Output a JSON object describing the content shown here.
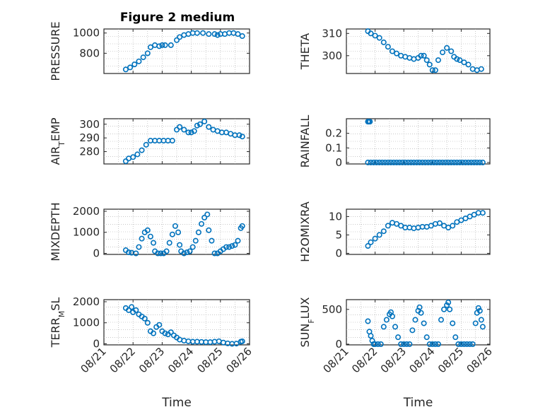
{
  "figure_title": "Figure 2 medium",
  "x_axis_label": "Time",
  "x_tick_labels": [
    "08/21",
    "08/22",
    "08/23",
    "08/24",
    "08/25",
    "08/26"
  ],
  "marker_color": "#0072BD",
  "chart_data": [
    {
      "id": "pressure",
      "type": "scatter",
      "title": "Figure 2 medium",
      "ylabel_parts": [
        "PRESSURE"
      ],
      "xlabel": "",
      "xlim": [
        0,
        5
      ],
      "ylim": [
        600,
        1040
      ],
      "grid": true,
      "yticks": [
        800,
        1000
      ],
      "ytick_labels": [
        "800",
        "1000"
      ],
      "x": [
        0.75,
        0.9,
        1.05,
        1.2,
        1.35,
        1.5,
        1.6,
        1.75,
        1.9,
        2.0,
        2.1,
        2.3,
        2.5,
        2.6,
        2.75,
        2.9,
        3.05,
        3.2,
        3.4,
        3.6,
        3.8,
        3.9,
        4.0,
        4.15,
        4.3,
        4.45,
        4.6,
        4.75
      ],
      "y": [
        640,
        660,
        690,
        720,
        760,
        800,
        860,
        880,
        870,
        880,
        880,
        880,
        930,
        960,
        980,
        990,
        1000,
        1000,
        1000,
        990,
        990,
        980,
        990,
        990,
        1000,
        1000,
        990,
        970
      ]
    },
    {
      "id": "theta",
      "type": "scatter",
      "ylabel_parts": [
        "THETA"
      ],
      "xlabel": "",
      "xlim": [
        0,
        5
      ],
      "ylim": [
        292,
        312
      ],
      "grid": true,
      "yticks": [
        300,
        310
      ],
      "ytick_labels": [
        "300",
        "310"
      ],
      "x": [
        0.75,
        0.85,
        1.0,
        1.15,
        1.3,
        1.45,
        1.6,
        1.75,
        1.9,
        2.05,
        2.2,
        2.35,
        2.5,
        2.6,
        2.7,
        2.8,
        2.9,
        3.0,
        3.1,
        3.2,
        3.35,
        3.5,
        3.65,
        3.75,
        3.85,
        3.95,
        4.1,
        4.25,
        4.4,
        4.55,
        4.7
      ],
      "y": [
        311,
        310,
        309,
        308,
        306,
        304,
        302,
        301,
        300,
        299.5,
        299,
        298.5,
        299,
        300,
        300,
        298,
        296,
        293.5,
        293.5,
        298,
        301.5,
        303.5,
        302,
        299.5,
        298.5,
        298,
        297,
        296,
        294,
        293.5,
        294
      ]
    },
    {
      "id": "air_temp",
      "type": "scatter",
      "ylabel_parts": [
        "AIR",
        "T",
        "EMP"
      ],
      "xlabel": "",
      "xlim": [
        0,
        5
      ],
      "ylim": [
        271,
        304
      ],
      "grid": true,
      "yticks": [
        280,
        290,
        300
      ],
      "ytick_labels": [
        "280",
        "290",
        "300"
      ],
      "x": [
        0.75,
        0.85,
        1.0,
        1.15,
        1.3,
        1.45,
        1.6,
        1.75,
        1.9,
        2.05,
        2.2,
        2.35,
        2.5,
        2.6,
        2.75,
        2.9,
        3.0,
        3.1,
        3.2,
        3.3,
        3.45,
        3.6,
        3.75,
        3.9,
        4.05,
        4.2,
        4.35,
        4.5,
        4.65,
        4.75
      ],
      "y": [
        273,
        275,
        276,
        278,
        281,
        285,
        288,
        288,
        288,
        288,
        288,
        288,
        296,
        298,
        296,
        294,
        294,
        295,
        299,
        300,
        302,
        298,
        296,
        295,
        294,
        294,
        293,
        292,
        292,
        291
      ]
    },
    {
      "id": "rainfall",
      "type": "scatter",
      "ylabel_parts": [
        "RAINFALL"
      ],
      "xlabel": "",
      "xlim": [
        0,
        5
      ],
      "ylim": [
        -0.01,
        0.3
      ],
      "grid": true,
      "yticks": [
        0,
        0.1,
        0.2
      ],
      "ytick_labels": [
        "0",
        "0.1",
        "0.2"
      ],
      "x": [
        0.75,
        0.78,
        0.82,
        0.75,
        0.85,
        0.95,
        1.05,
        1.15,
        1.25,
        1.35,
        1.45,
        1.55,
        1.65,
        1.75,
        1.85,
        1.95,
        2.05,
        2.15,
        2.25,
        2.35,
        2.45,
        2.55,
        2.65,
        2.75,
        2.85,
        2.95,
        3.05,
        3.15,
        3.25,
        3.35,
        3.45,
        3.55,
        3.65,
        3.75,
        3.85,
        3.95,
        4.05,
        4.15,
        4.25,
        4.35,
        4.45,
        4.55,
        4.65,
        4.75
      ],
      "y": [
        0.28,
        0.28,
        0.28,
        0,
        0,
        0,
        0,
        0,
        0,
        0,
        0,
        0,
        0,
        0,
        0,
        0,
        0,
        0,
        0,
        0,
        0,
        0,
        0,
        0,
        0,
        0,
        0,
        0,
        0,
        0,
        0,
        0,
        0,
        0,
        0,
        0,
        0,
        0,
        0,
        0,
        0,
        0,
        0,
        0
      ]
    },
    {
      "id": "mixdepth",
      "type": "scatter",
      "ylabel_parts": [
        "MIXDEPTH"
      ],
      "xlabel": "",
      "xlim": [
        0,
        5
      ],
      "ylim": [
        -50,
        2100
      ],
      "grid": true,
      "yticks": [
        0,
        1000,
        2000
      ],
      "ytick_labels": [
        "0",
        "1000",
        "2000"
      ],
      "x": [
        0.75,
        0.85,
        0.95,
        1.1,
        1.2,
        1.3,
        1.4,
        1.5,
        1.6,
        1.7,
        1.75,
        1.85,
        1.95,
        2.05,
        2.15,
        2.25,
        2.35,
        2.45,
        2.55,
        2.6,
        2.65,
        2.75,
        2.85,
        2.95,
        3.05,
        3.15,
        3.25,
        3.35,
        3.45,
        3.55,
        3.6,
        3.7,
        3.8,
        3.9,
        4.0,
        4.1,
        4.2,
        4.3,
        4.4,
        4.5,
        4.6,
        4.7,
        4.75
      ],
      "y": [
        150,
        50,
        30,
        0,
        300,
        700,
        1000,
        1100,
        800,
        500,
        100,
        0,
        0,
        0,
        100,
        500,
        900,
        1300,
        1000,
        400,
        100,
        0,
        50,
        100,
        300,
        600,
        1000,
        1400,
        1700,
        1850,
        1100,
        600,
        0,
        0,
        100,
        200,
        300,
        300,
        350,
        400,
        600,
        1200,
        1300
      ]
    },
    {
      "id": "h2omixra",
      "type": "scatter",
      "ylabel_parts": [
        "H2OMIXRA"
      ],
      "xlabel": "",
      "xlim": [
        0,
        5
      ],
      "ylim": [
        -0.3,
        12
      ],
      "grid": true,
      "yticks": [
        0,
        5,
        10
      ],
      "ytick_labels": [
        "0",
        "5",
        "10"
      ],
      "x": [
        0.75,
        0.85,
        1.0,
        1.15,
        1.3,
        1.45,
        1.6,
        1.75,
        1.9,
        2.05,
        2.2,
        2.35,
        2.5,
        2.65,
        2.8,
        2.95,
        3.1,
        3.25,
        3.4,
        3.55,
        3.7,
        3.85,
        4.0,
        4.15,
        4.3,
        4.45,
        4.6,
        4.75
      ],
      "y": [
        2,
        3,
        4,
        5,
        6,
        7.5,
        8.3,
        8,
        7.5,
        7,
        7,
        6.8,
        7,
        7.2,
        7.2,
        7.5,
        8,
        8.2,
        7.5,
        7,
        7.5,
        8.5,
        9,
        9.5,
        10,
        10.5,
        11,
        11
      ]
    },
    {
      "id": "terr_msl",
      "type": "scatter",
      "ylabel_parts": [
        "TERR",
        "M",
        "SL"
      ],
      "xlabel": "Time",
      "xlim": [
        0,
        5
      ],
      "ylim": [
        -50,
        2100
      ],
      "grid": true,
      "yticks": [
        0,
        1000,
        2000
      ],
      "ytick_labels": [
        "0",
        "1000",
        "2000"
      ],
      "x": [
        0.75,
        0.85,
        0.95,
        1.0,
        1.1,
        1.2,
        1.3,
        1.4,
        1.5,
        1.6,
        1.7,
        1.8,
        1.9,
        2.0,
        2.1,
        2.2,
        2.3,
        2.4,
        2.5,
        2.6,
        2.75,
        2.9,
        3.05,
        3.2,
        3.35,
        3.5,
        3.65,
        3.8,
        3.95,
        4.1,
        4.25,
        4.4,
        4.55,
        4.7,
        4.75
      ],
      "y": [
        1700,
        1600,
        1750,
        1500,
        1600,
        1400,
        1300,
        1200,
        1000,
        600,
        500,
        800,
        900,
        600,
        500,
        450,
        550,
        400,
        300,
        200,
        150,
        120,
        100,
        100,
        90,
        80,
        80,
        100,
        120,
        60,
        20,
        0,
        10,
        100,
        120
      ]
    },
    {
      "id": "sun_flux",
      "type": "scatter",
      "ylabel_parts": [
        "SUN",
        "F",
        "LUX"
      ],
      "xlabel": "Time",
      "xlim": [
        0,
        5
      ],
      "ylim": [
        -10,
        640
      ],
      "grid": true,
      "yticks": [
        0,
        500
      ],
      "ytick_labels": [
        "0",
        "500"
      ],
      "x": [
        0.75,
        0.8,
        0.85,
        0.9,
        0.95,
        1.0,
        1.1,
        1.2,
        1.3,
        1.4,
        1.5,
        1.55,
        1.6,
        1.7,
        1.8,
        1.9,
        2.0,
        2.1,
        2.2,
        2.3,
        2.4,
        2.5,
        2.55,
        2.6,
        2.7,
        2.8,
        2.9,
        3.0,
        3.1,
        3.2,
        3.3,
        3.4,
        3.5,
        3.55,
        3.6,
        3.7,
        3.8,
        3.9,
        4.0,
        4.1,
        4.2,
        4.3,
        4.4,
        4.5,
        4.55,
        4.6,
        4.65,
        4.7,
        4.75
      ],
      "y": [
        330,
        180,
        120,
        50,
        0,
        0,
        0,
        0,
        250,
        350,
        430,
        460,
        400,
        250,
        100,
        0,
        0,
        0,
        0,
        200,
        350,
        480,
        530,
        450,
        300,
        100,
        0,
        0,
        0,
        0,
        350,
        500,
        560,
        600,
        500,
        300,
        100,
        0,
        0,
        0,
        0,
        0,
        0,
        300,
        450,
        520,
        480,
        350,
        250
      ]
    }
  ]
}
